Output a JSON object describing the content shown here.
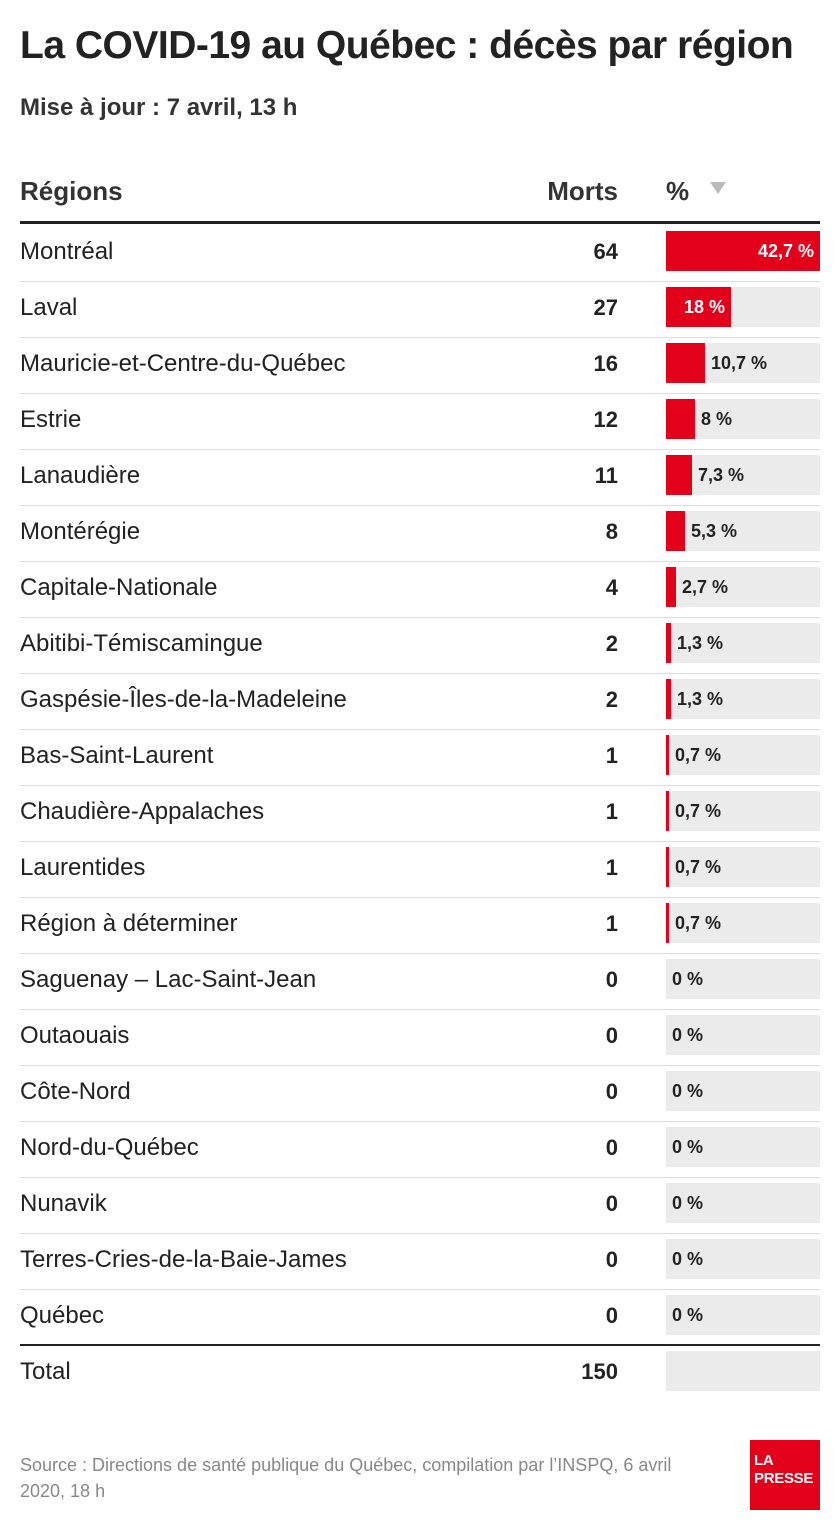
{
  "title": "La COVID-19 au Québec : décès par région",
  "subtitle": "Mise à jour : 7 avril, 13 h",
  "columns": {
    "region": "Régions",
    "deaths": "Morts",
    "percent": "%"
  },
  "colors": {
    "bar": "#e3001b",
    "track": "#ebebeb"
  },
  "chart_data": {
    "type": "table",
    "rows": [
      {
        "region": "Montréal",
        "deaths": "64",
        "percent": 42.7,
        "label": "42,7 %"
      },
      {
        "region": "Laval",
        "deaths": "27",
        "percent": 18,
        "label": "18 %"
      },
      {
        "region": "Mauricie-et-Centre-du-Québec",
        "deaths": "16",
        "percent": 10.7,
        "label": "10,7 %"
      },
      {
        "region": "Estrie",
        "deaths": "12",
        "percent": 8,
        "label": "8 %"
      },
      {
        "region": "Lanaudière",
        "deaths": "11",
        "percent": 7.3,
        "label": "7,3 %"
      },
      {
        "region": "Montérégie",
        "deaths": "8",
        "percent": 5.3,
        "label": "5,3 %"
      },
      {
        "region": "Capitale-Nationale",
        "deaths": "4",
        "percent": 2.7,
        "label": "2,7 %"
      },
      {
        "region": "Abitibi-Témiscamingue",
        "deaths": "2",
        "percent": 1.3,
        "label": "1,3 %"
      },
      {
        "region": "Gaspésie-Îles-de-la-Madeleine",
        "deaths": "2",
        "percent": 1.3,
        "label": "1,3 %"
      },
      {
        "region": "Bas-Saint-Laurent",
        "deaths": "1",
        "percent": 0.7,
        "label": "0,7 %"
      },
      {
        "region": "Chaudière-Appalaches",
        "deaths": "1",
        "percent": 0.7,
        "label": "0,7 %"
      },
      {
        "region": "Laurentides",
        "deaths": "1",
        "percent": 0.7,
        "label": "0,7 %"
      },
      {
        "region": "Région à déterminer",
        "deaths": "1",
        "percent": 0.7,
        "label": "0,7 %"
      },
      {
        "region": "Saguenay – Lac-Saint-Jean",
        "deaths": "0",
        "percent": 0,
        "label": "0 %"
      },
      {
        "region": "Outaouais",
        "deaths": "0",
        "percent": 0,
        "label": "0 %"
      },
      {
        "region": "Côte-Nord",
        "deaths": "0",
        "percent": 0,
        "label": "0 %"
      },
      {
        "region": "Nord-du-Québec",
        "deaths": "0",
        "percent": 0,
        "label": "0 %"
      },
      {
        "region": "Nunavik",
        "deaths": "0",
        "percent": 0,
        "label": "0 %"
      },
      {
        "region": "Terres-Cries-de-la-Baie-James",
        "deaths": "0",
        "percent": 0,
        "label": "0 %"
      },
      {
        "region": "Québec",
        "deaths": "0",
        "percent": 0,
        "label": "0 %"
      }
    ],
    "xlim": [
      0,
      42.7
    ],
    "total": {
      "label": "Total",
      "deaths": "150"
    }
  },
  "source": "Source : Directions de santé publique du Québec, compilation par l’INSPQ, 6 avril 2020, 18 h",
  "logo": {
    "line1": "LA",
    "line2": "PRESSE"
  },
  "icons": {
    "sort": "sort-down-icon"
  }
}
